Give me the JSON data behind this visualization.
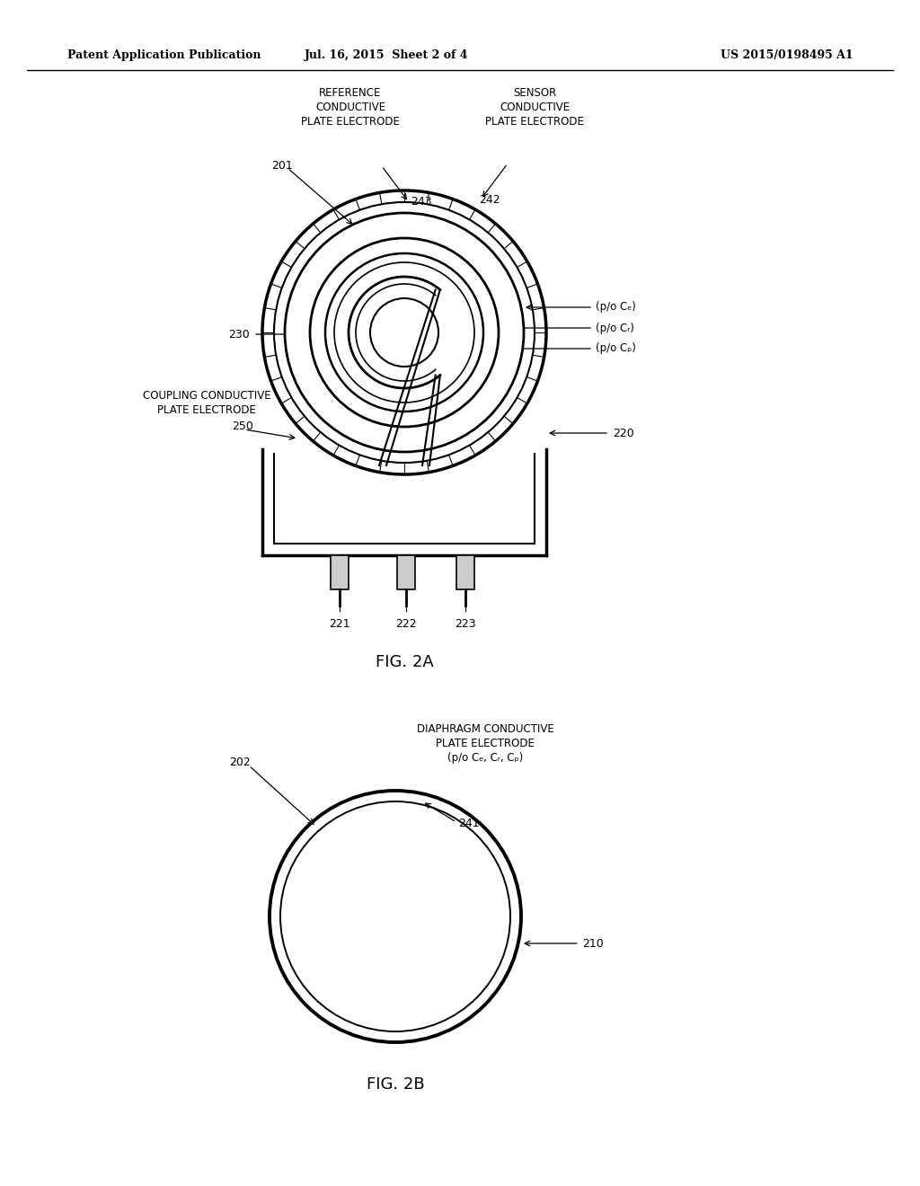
{
  "background_color": "#ffffff",
  "header_left": "Patent Application Publication",
  "header_center": "Jul. 16, 2015  Sheet 2 of 4",
  "header_right": "US 2015/0198495 A1",
  "fig2a_label": "FIG. 2A",
  "fig2b_label": "FIG. 2B",
  "ref_201": "201",
  "ref_202": "202",
  "ref_210": "210",
  "ref_220": "220",
  "ref_221": "221",
  "ref_222": "222",
  "ref_223": "223",
  "ref_230": "230",
  "ref_241": "241",
  "ref_242": "242",
  "ref_243": "243",
  "ref_250": "250",
  "label_ref_electrode": "REFERENCE\nCONDUCTIVE\nPLATE ELECTRODE",
  "label_sensor_electrode": "SENSOR\nCONDUCTIVE\nPLATE ELECTRODE",
  "label_coupling_electrode": "COUPLING CONDUCTIVE\nPLATE ELECTRODE",
  "label_diaphragm_electrode": "DIAPHRAGM CONDUCTIVE\nPLATE ELECTRODE\n(p/o Cₑ, Cᵣ, Cₚ)",
  "label_poCc": "(p/o Cₑ)",
  "label_poCr": "(p/o Cᵣ)",
  "label_poCp": "(p/o Cₚ)"
}
